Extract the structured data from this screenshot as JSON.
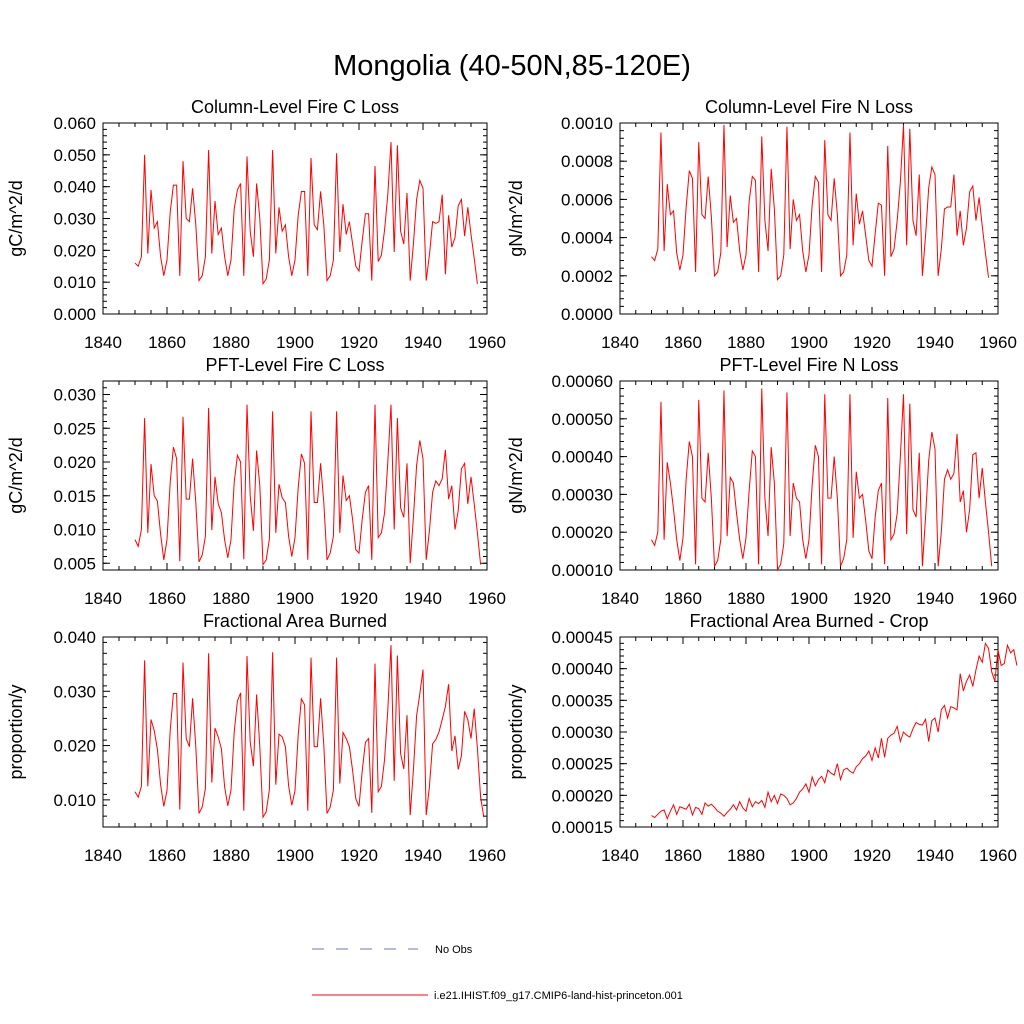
{
  "title": "Mongolia (40-50N,85-120E)",
  "colors": {
    "model": "#ff0000",
    "obs": "#6b78b8",
    "axis": "#000000"
  },
  "legend": {
    "obs_label": "No Obs",
    "model_label": "i.e21.IHIST.f09_g17.CMIP6-land-hist-princeton.001"
  },
  "panels": [
    {
      "title": "Column-Level Fire C Loss",
      "ylabel": "gC/m^2/d",
      "xlim": [
        1840,
        1960
      ],
      "ylim": [
        0.0,
        0.06
      ],
      "xticks": [
        1840,
        1860,
        1880,
        1900,
        1920,
        1940,
        1960
      ],
      "yticks": [
        "0.000",
        "0.010",
        "0.020",
        "0.030",
        "0.040",
        "0.050",
        "0.060"
      ]
    },
    {
      "title": "Column-Level Fire N Loss",
      "ylabel": "gN/m^2/d",
      "xlim": [
        1840,
        1960
      ],
      "ylim": [
        0.0,
        0.001
      ],
      "xticks": [
        1840,
        1860,
        1880,
        1900,
        1920,
        1940,
        1960
      ],
      "yticks": [
        "0.0000",
        "0.0002",
        "0.0004",
        "0.0006",
        "0.0008",
        "0.0010"
      ]
    },
    {
      "title": "PFT-Level Fire C Loss",
      "ylabel": "gC/m^2/d",
      "xlim": [
        1840,
        1960
      ],
      "ylim": [
        0.004,
        0.032
      ],
      "xticks": [
        1840,
        1860,
        1880,
        1900,
        1920,
        1940,
        1960
      ],
      "yticks": [
        "0.005",
        "0.010",
        "0.015",
        "0.020",
        "0.025",
        "0.030"
      ]
    },
    {
      "title": "PFT-Level Fire N Loss",
      "ylabel": "gN/m^2/d",
      "xlim": [
        1840,
        1960
      ],
      "ylim": [
        0.0001,
        0.0006
      ],
      "xticks": [
        1840,
        1860,
        1880,
        1900,
        1920,
        1940,
        1960
      ],
      "yticks": [
        "0.00010",
        "0.00020",
        "0.00030",
        "0.00040",
        "0.00050",
        "0.00060"
      ]
    },
    {
      "title": "Fractional Area Burned",
      "ylabel": "proportion/y",
      "xlim": [
        1840,
        1960
      ],
      "ylim": [
        0.005,
        0.04
      ],
      "xticks": [
        1840,
        1860,
        1880,
        1900,
        1920,
        1940,
        1960
      ],
      "yticks": [
        "0.010",
        "0.020",
        "0.030",
        "0.040"
      ]
    },
    {
      "title": "Fractional Area Burned - Crop",
      "ylabel": "proportion/y",
      "xlim": [
        1840,
        1960
      ],
      "ylim": [
        0.00015,
        0.00045
      ],
      "xticks": [
        1840,
        1860,
        1880,
        1900,
        1920,
        1940,
        1960
      ],
      "yticks": [
        "0.00015",
        "0.00020",
        "0.00025",
        "0.00030",
        "0.00035",
        "0.00040",
        "0.00045"
      ]
    }
  ],
  "chart_data": [
    {
      "type": "line",
      "title": "Column-Level Fire C Loss",
      "ylabel": "gC/m^2/d",
      "xlim": [
        1840,
        1960
      ],
      "ylim": [
        0.0,
        0.06
      ],
      "series": [
        {
          "name": "i.e21.IHIST.f09_g17.CMIP6-land-hist-princeton.001",
          "x_start": 1850,
          "values": [
            0.016,
            0.015,
            0.018,
            0.05,
            0.019,
            0.039,
            0.027,
            0.029,
            0.018,
            0.012,
            0.017,
            0.032,
            0.0405,
            0.0405,
            0.012,
            0.048,
            0.03,
            0.029,
            0.0395,
            0.028,
            0.0105,
            0.012,
            0.018,
            0.0515,
            0.019,
            0.0355,
            0.025,
            0.027,
            0.018,
            0.012,
            0.017,
            0.033,
            0.039,
            0.041,
            0.012,
            0.0495,
            0.026,
            0.018,
            0.041,
            0.03,
            0.0095,
            0.011,
            0.017,
            0.0515,
            0.019,
            0.0335,
            0.026,
            0.028,
            0.018,
            0.012,
            0.017,
            0.031,
            0.0385,
            0.0385,
            0.012,
            0.049,
            0.028,
            0.0265,
            0.0385,
            0.028,
            0.0105,
            0.012,
            0.017,
            0.0505,
            0.0195,
            0.0345,
            0.025,
            0.029,
            0.022,
            0.015,
            0.0135,
            0.023,
            0.0315,
            0.0315,
            0.0105,
            0.0465,
            0.0165,
            0.0185,
            0.0265,
            0.0375,
            0.054,
            0.0195,
            0.053,
            0.026,
            0.022,
            0.038,
            0.0105,
            0.022,
            0.036,
            0.042,
            0.0395,
            0.0105,
            0.0185,
            0.029,
            0.0285,
            0.029,
            0.0375,
            0.0125,
            0.031,
            0.021,
            0.024,
            0.034,
            0.036,
            0.0245,
            0.0335,
            0.025,
            0.0175,
            0.0095
          ]
        }
      ]
    },
    {
      "type": "line",
      "title": "Column-Level Fire N Loss",
      "ylabel": "gN/m^2/d",
      "xlim": [
        1840,
        1960
      ],
      "ylim": [
        0.0,
        0.001
      ],
      "series": [
        {
          "name": "i.e21.IHIST.f09_g17.CMIP6-land-hist-princeton.001",
          "x_start": 1850,
          "values": [
            0.0003,
            0.00028,
            0.00034,
            0.00095,
            0.00033,
            0.00068,
            0.00052,
            0.00054,
            0.00032,
            0.00023,
            0.00031,
            0.00056,
            0.00075,
            0.00071,
            0.00022,
            0.0009,
            0.00052,
            0.0005,
            0.00072,
            0.00051,
            0.0002,
            0.00022,
            0.00032,
            0.00099,
            0.00035,
            0.00062,
            0.00048,
            0.0005,
            0.00033,
            0.00023,
            0.00031,
            0.00059,
            0.00072,
            0.0007,
            0.00022,
            0.00093,
            0.00049,
            0.00033,
            0.00076,
            0.00055,
            0.00018,
            0.0002,
            0.00031,
            0.00098,
            0.00034,
            0.0006,
            0.00049,
            0.00052,
            0.00033,
            0.00022,
            0.00031,
            0.00057,
            0.00072,
            0.00069,
            0.00022,
            0.00091,
            0.00052,
            0.00049,
            0.00071,
            0.00052,
            0.0002,
            0.00022,
            0.00031,
            0.00095,
            0.00036,
            0.00063,
            0.00047,
            0.00054,
            0.00041,
            0.00028,
            0.00025,
            0.00042,
            0.00058,
            0.00057,
            0.0002,
            0.00088,
            0.0003,
            0.00034,
            0.00049,
            0.00069,
            0.00099,
            0.00036,
            0.00097,
            0.00049,
            0.00041,
            0.00073,
            0.0002,
            0.00041,
            0.00066,
            0.00077,
            0.00073,
            0.0002,
            0.00034,
            0.00055,
            0.00056,
            0.00056,
            0.00073,
            0.00041,
            0.00054,
            0.00036,
            0.00045,
            0.00064,
            0.00067,
            0.00049,
            0.00061,
            0.00046,
            0.00032,
            0.00019
          ]
        }
      ]
    },
    {
      "type": "line",
      "title": "PFT-Level Fire C Loss",
      "ylabel": "gC/m^2/d",
      "xlim": [
        1840,
        1960
      ],
      "ylim": [
        0.004,
        0.032
      ],
      "series": [
        {
          "name": "i.e21.IHIST.f09_g17.CMIP6-land-hist-princeton.001",
          "x_start": 1850,
          "values": [
            0.0085,
            0.0075,
            0.01,
            0.0265,
            0.0095,
            0.0197,
            0.015,
            0.0142,
            0.0093,
            0.0055,
            0.0085,
            0.017,
            0.0222,
            0.0205,
            0.0053,
            0.0267,
            0.0145,
            0.0145,
            0.0205,
            0.014,
            0.0052,
            0.0062,
            0.009,
            0.028,
            0.0099,
            0.0178,
            0.0138,
            0.0125,
            0.0085,
            0.0058,
            0.0085,
            0.017,
            0.021,
            0.02,
            0.0056,
            0.0285,
            0.015,
            0.0098,
            0.0217,
            0.0165,
            0.0048,
            0.0055,
            0.0086,
            0.0275,
            0.0095,
            0.0167,
            0.0147,
            0.014,
            0.009,
            0.006,
            0.0088,
            0.0162,
            0.0212,
            0.0198,
            0.0055,
            0.0275,
            0.014,
            0.014,
            0.0198,
            0.014,
            0.0055,
            0.0065,
            0.009,
            0.0275,
            0.0095,
            0.018,
            0.0143,
            0.015,
            0.0115,
            0.007,
            0.0065,
            0.0115,
            0.0155,
            0.0165,
            0.0055,
            0.0285,
            0.0088,
            0.0095,
            0.0125,
            0.02,
            0.0285,
            0.01,
            0.0265,
            0.0132,
            0.0118,
            0.0198,
            0.005,
            0.0118,
            0.0195,
            0.0232,
            0.0205,
            0.0055,
            0.0098,
            0.0155,
            0.0172,
            0.0165,
            0.0175,
            0.0218,
            0.0145,
            0.0165,
            0.01,
            0.0128,
            0.019,
            0.0198,
            0.0138,
            0.0178,
            0.0138,
            0.0095,
            0.0048
          ]
        }
      ]
    },
    {
      "type": "line",
      "title": "PFT-Level Fire N Loss",
      "ylabel": "gN/m^2/d",
      "xlim": [
        1840,
        1960
      ],
      "ylim": [
        0.0001,
        0.0006
      ],
      "series": [
        {
          "name": "i.e21.IHIST.f09_g17.CMIP6-land-hist-princeton.001",
          "x_start": 1850,
          "values": [
            0.00018,
            0.000165,
            0.0002,
            0.000545,
            0.00018,
            0.000385,
            0.00033,
            0.00026,
            0.00018,
            0.000125,
            0.000185,
            0.00034,
            0.00044,
            0.0004,
            0.000115,
            0.00055,
            0.00029,
            0.00028,
            0.00041,
            0.00029,
            0.00011,
            0.000125,
            0.00018,
            0.000575,
            0.00019,
            0.000345,
            0.00033,
            0.00025,
            0.00018,
            0.00013,
            0.000185,
            0.00031,
            0.000415,
            0.0004,
            0.000115,
            0.00058,
            0.00029,
            0.00019,
            0.000425,
            0.00033,
            0.0001,
            0.000115,
            0.00017,
            0.00057,
            0.00019,
            0.00033,
            0.00029,
            0.00028,
            0.00018,
            0.00013,
            0.00018,
            0.000325,
            0.00043,
            0.0004,
            0.000115,
            0.000565,
            0.00029,
            0.00029,
            0.0004,
            0.00029,
            0.00011,
            0.00013,
            0.00018,
            0.000565,
            0.000185,
            0.00036,
            0.00029,
            0.0003,
            0.00023,
            0.00015,
            0.00013,
            0.00024,
            0.00031,
            0.00033,
            0.000115,
            0.000555,
            0.00018,
            0.000195,
            0.00025,
            0.0004,
            0.000565,
            0.000195,
            0.00054,
            0.00026,
            0.00024,
            0.00041,
            0.00011,
            0.00024,
            0.00039,
            0.000465,
            0.00042,
            0.00011,
            0.0002,
            0.00034,
            0.000365,
            0.00034,
            0.000355,
            0.00046,
            0.00028,
            0.00031,
            0.0002,
            0.00026,
            0.000405,
            0.00041,
            0.00029,
            0.00037,
            0.00028,
            0.0002,
            0.00011
          ]
        }
      ]
    },
    {
      "type": "line",
      "title": "Fractional Area Burned",
      "ylabel": "proportion/y",
      "xlim": [
        1840,
        1960
      ],
      "ylim": [
        0.005,
        0.04
      ],
      "series": [
        {
          "name": "i.e21.IHIST.f09_g17.CMIP6-land-hist-princeton.001",
          "x_start": 1850,
          "values": [
            0.0115,
            0.0105,
            0.0125,
            0.0357,
            0.0125,
            0.0248,
            0.0228,
            0.0193,
            0.0128,
            0.0088,
            0.0117,
            0.0228,
            0.0296,
            0.0296,
            0.0082,
            0.0353,
            0.0213,
            0.0198,
            0.0287,
            0.0198,
            0.0075,
            0.0087,
            0.0121,
            0.037,
            0.0132,
            0.0232,
            0.0216,
            0.0194,
            0.0124,
            0.0089,
            0.0118,
            0.0225,
            0.0282,
            0.0297,
            0.008,
            0.0365,
            0.0207,
            0.0162,
            0.0294,
            0.0198,
            0.0068,
            0.0078,
            0.0119,
            0.0372,
            0.0128,
            0.0221,
            0.0216,
            0.0198,
            0.0126,
            0.009,
            0.0117,
            0.022,
            0.0286,
            0.0275,
            0.008,
            0.0362,
            0.0198,
            0.0198,
            0.0287,
            0.0201,
            0.0075,
            0.0087,
            0.0118,
            0.0362,
            0.013,
            0.0224,
            0.0213,
            0.0198,
            0.0154,
            0.0102,
            0.0088,
            0.0153,
            0.0206,
            0.0213,
            0.0076,
            0.0351,
            0.0115,
            0.0125,
            0.0175,
            0.0266,
            0.0385,
            0.0135,
            0.0366,
            0.0185,
            0.0157,
            0.0256,
            0.0072,
            0.0155,
            0.0255,
            0.0295,
            0.034,
            0.0072,
            0.0124,
            0.0203,
            0.0211,
            0.0225,
            0.0248,
            0.0272,
            0.0313,
            0.019,
            0.0218,
            0.0156,
            0.0181,
            0.0263,
            0.0248,
            0.0213,
            0.0268,
            0.0195,
            0.0105,
            0.0068
          ]
        }
      ]
    },
    {
      "type": "line",
      "title": "Fractional Area Burned - Crop",
      "ylabel": "proportion/y",
      "xlim": [
        1840,
        1960
      ],
      "ylim": [
        0.00015,
        0.00045
      ],
      "series": [
        {
          "name": "i.e21.IHIST.f09_g17.CMIP6-land-hist-princeton.001",
          "x_start": 1850,
          "values": [
            0.000168,
            0.000165,
            0.00017,
            0.000175,
            0.000177,
            0.000163,
            0.000175,
            0.000185,
            0.00017,
            0.000182,
            0.00018,
            0.000178,
            0.000186,
            0.000169,
            0.000181,
            0.000179,
            0.00017,
            0.000188,
            0.000183,
            0.000186,
            0.000181,
            0.000175,
            0.000172,
            0.000167,
            0.000173,
            0.000178,
            0.000185,
            0.000177,
            0.00019,
            0.00018,
            0.000175,
            0.000195,
            0.000182,
            0.00019,
            0.000187,
            0.000192,
            0.000181,
            0.000205,
            0.00019,
            0.0002,
            0.000187,
            0.000202,
            0.0002,
            0.000195,
            0.000185,
            0.000188,
            0.000195,
            0.000205,
            0.00021,
            0.000218,
            0.000205,
            0.000229,
            0.000215,
            0.000225,
            0.00023,
            0.00022,
            0.00024,
            0.000235,
            0.000232,
            0.00025,
            0.000225,
            0.00024,
            0.000243,
            0.000238,
            0.000235,
            0.000245,
            0.00025,
            0.000258,
            0.000262,
            0.00027,
            0.000255,
            0.000275,
            0.000259,
            0.00029,
            0.00026,
            0.00029,
            0.000295,
            0.000298,
            0.000309,
            0.000285,
            0.0003,
            0.000295,
            0.000292,
            0.000305,
            0.000315,
            0.000312,
            0.000311,
            0.00032,
            0.000285,
            0.000318,
            0.000322,
            0.0003,
            0.000335,
            0.000342,
            0.000322,
            0.00034,
            0.000338,
            0.000335,
            0.000392,
            0.000365,
            0.00038,
            0.00039,
            0.000372,
            0.000398,
            0.00042,
            0.00041,
            0.00044,
            0.000432,
            0.000395,
            0.00038,
            0.00043,
            0.000405,
            0.000408,
            0.000437,
            0.000425,
            0.00043,
            0.000405
          ]
        }
      ]
    }
  ]
}
